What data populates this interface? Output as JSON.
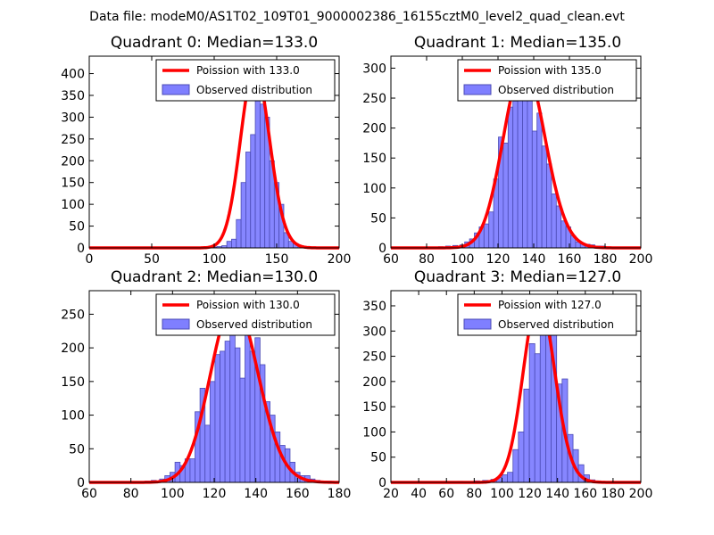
{
  "figure": {
    "suptitle": "Data file: modeM0/AS1T02_109T01_9000002386_16155cztM0_level2_quad_clean.evt",
    "bar_color": "#7f7fff",
    "bar_edge_color": "#4b4bb5",
    "line_color": "#ff0000"
  },
  "chart_data": [
    {
      "type": "bar",
      "title": "Quadrant 0: Median=133.0",
      "xlim": [
        0,
        200
      ],
      "ylim": [
        0,
        440
      ],
      "xticks": [
        0,
        50,
        100,
        150,
        200
      ],
      "yticks": [
        0,
        50,
        100,
        150,
        200,
        250,
        300,
        350,
        400
      ],
      "legend": [
        "Poission with 133.0",
        "Observed distribution"
      ],
      "legend_loc": "upper right",
      "poisson_mean": 133.0,
      "poisson_scale": 415,
      "bin_width": 3.8,
      "hist": [
        [
          15,
          1
        ],
        [
          50,
          1
        ],
        [
          90,
          1
        ],
        [
          95,
          1
        ],
        [
          100,
          2
        ],
        [
          104,
          3
        ],
        [
          108,
          5
        ],
        [
          112,
          15
        ],
        [
          115.8,
          20
        ],
        [
          119.6,
          65
        ],
        [
          123.4,
          150
        ],
        [
          127.2,
          220
        ],
        [
          131,
          260
        ],
        [
          134.8,
          385
        ],
        [
          138.6,
          330
        ],
        [
          142.4,
          300
        ],
        [
          146.2,
          200
        ],
        [
          150,
          150
        ],
        [
          153.8,
          100
        ],
        [
          157.6,
          35
        ],
        [
          161.4,
          15
        ],
        [
          165.2,
          10
        ],
        [
          169,
          5
        ],
        [
          173,
          2
        ],
        [
          177,
          1
        ],
        [
          190,
          1
        ]
      ]
    },
    {
      "type": "bar",
      "title": "Quadrant 1: Median=135.0",
      "xlim": [
        60,
        200
      ],
      "ylim": [
        0,
        320
      ],
      "xticks": [
        60,
        80,
        100,
        120,
        140,
        160,
        180,
        200
      ],
      "yticks": [
        0,
        50,
        100,
        150,
        200,
        250,
        300
      ],
      "legend": [
        "Poission with 135.0",
        "Observed distribution"
      ],
      "legend_loc": "upper right",
      "poisson_mean": 135.0,
      "poisson_scale": 305,
      "bin_width": 2.7,
      "hist": [
        [
          88,
          2
        ],
        [
          92,
          3
        ],
        [
          96,
          4
        ],
        [
          100,
          5
        ],
        [
          102.7,
          10
        ],
        [
          105.4,
          15
        ],
        [
          108.1,
          25
        ],
        [
          110.8,
          35
        ],
        [
          113.5,
          40
        ],
        [
          116.2,
          60
        ],
        [
          118.9,
          115
        ],
        [
          121.6,
          185
        ],
        [
          124.3,
          175
        ],
        [
          127,
          235
        ],
        [
          129.7,
          245
        ],
        [
          132.4,
          300
        ],
        [
          135.1,
          255
        ],
        [
          137.8,
          275
        ],
        [
          140.5,
          195
        ],
        [
          143.2,
          225
        ],
        [
          145.9,
          170
        ],
        [
          148.6,
          140
        ],
        [
          151.3,
          90
        ],
        [
          154,
          70
        ],
        [
          156.7,
          45
        ],
        [
          159.4,
          35
        ],
        [
          162.1,
          20
        ],
        [
          164.8,
          10
        ],
        [
          167.5,
          7
        ],
        [
          170.2,
          6
        ],
        [
          172.9,
          5
        ],
        [
          175.6,
          3
        ],
        [
          178.3,
          3
        ]
      ]
    },
    {
      "type": "bar",
      "title": "Quadrant 2: Median=130.0",
      "xlim": [
        60,
        180
      ],
      "ylim": [
        0,
        285
      ],
      "xticks": [
        60,
        80,
        100,
        120,
        140,
        160,
        180
      ],
      "yticks": [
        0,
        50,
        100,
        150,
        200,
        250
      ],
      "legend": [
        "Poission with 130.0",
        "Observed distribution"
      ],
      "legend_loc": "upper right",
      "poisson_mean": 130.0,
      "poisson_scale": 267,
      "bin_width": 2.42,
      "hist": [
        [
          88,
          2
        ],
        [
          91,
          3
        ],
        [
          95,
          5
        ],
        [
          97.5,
          10
        ],
        [
          100,
          15
        ],
        [
          102.4,
          30
        ],
        [
          104.8,
          25
        ],
        [
          107.2,
          35
        ],
        [
          109.6,
          35
        ],
        [
          112,
          105
        ],
        [
          114.4,
          140
        ],
        [
          116.8,
          85
        ],
        [
          119.2,
          150
        ],
        [
          121.6,
          190
        ],
        [
          124,
          195
        ],
        [
          126.4,
          210
        ],
        [
          128.8,
          250
        ],
        [
          131.2,
          200
        ],
        [
          133.6,
          155
        ],
        [
          136,
          255
        ],
        [
          138.4,
          195
        ],
        [
          140.8,
          215
        ],
        [
          143.2,
          175
        ],
        [
          145.6,
          120
        ],
        [
          148,
          100
        ],
        [
          150.4,
          75
        ],
        [
          152.8,
          55
        ],
        [
          155.2,
          50
        ],
        [
          157.6,
          30
        ],
        [
          160,
          15
        ],
        [
          162.4,
          10
        ],
        [
          164.8,
          10
        ],
        [
          167.2,
          5
        ],
        [
          169.6,
          3
        ],
        [
          172,
          2
        ],
        [
          175,
          2
        ],
        [
          178,
          1
        ]
      ]
    },
    {
      "type": "bar",
      "title": "Quadrant 3: Median=127.0",
      "xlim": [
        20,
        200
      ],
      "ylim": [
        0,
        380
      ],
      "xticks": [
        20,
        40,
        60,
        80,
        100,
        120,
        140,
        160,
        180,
        200
      ],
      "yticks": [
        0,
        50,
        100,
        150,
        200,
        250,
        300,
        350
      ],
      "legend": [
        "Poission with 127.0",
        "Observed distribution"
      ],
      "legend_loc": "upper right",
      "poisson_mean": 127.0,
      "poisson_scale": 365,
      "bin_width": 3.95,
      "hist": [
        [
          30,
          1
        ],
        [
          70,
          2
        ],
        [
          82,
          3
        ],
        [
          88,
          4
        ],
        [
          94,
          6
        ],
        [
          98,
          10
        ],
        [
          102,
          15
        ],
        [
          105.9,
          20
        ],
        [
          109.9,
          65
        ],
        [
          113.8,
          100
        ],
        [
          117.7,
          185
        ],
        [
          121.7,
          275
        ],
        [
          125.6,
          255
        ],
        [
          129.5,
          295
        ],
        [
          133.5,
          335
        ],
        [
          137.4,
          325
        ],
        [
          141.3,
          195
        ],
        [
          145.3,
          205
        ],
        [
          149.2,
          95
        ],
        [
          153.1,
          65
        ],
        [
          157,
          35
        ],
        [
          161,
          15
        ],
        [
          165,
          5
        ],
        [
          169,
          3
        ],
        [
          175,
          2
        ],
        [
          182,
          1
        ]
      ]
    }
  ]
}
